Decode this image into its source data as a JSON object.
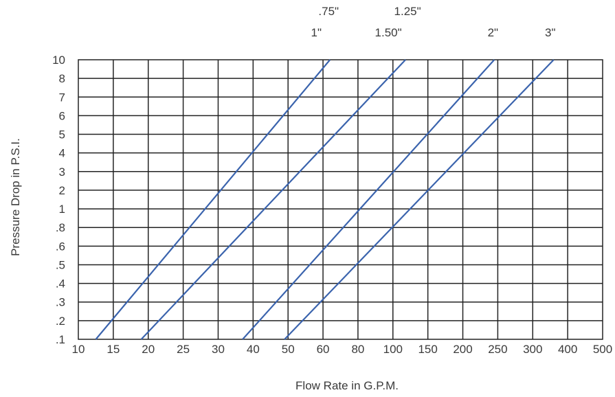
{
  "chart_data": {
    "type": "line",
    "title": "",
    "xlabel": "Flow Rate in G.P.M.",
    "ylabel": "Pressure Drop in P.S.I.",
    "x_tick_labels": [
      "10",
      "15",
      "20",
      "25",
      "30",
      "40",
      "50",
      "60",
      "80",
      "100",
      "150",
      "200",
      "250",
      "300",
      "400",
      "500"
    ],
    "y_tick_labels": [
      ".1",
      ".2",
      ".3",
      ".4",
      ".5",
      ".6",
      ".8",
      "1",
      "2",
      "3",
      "4",
      "5",
      "6",
      "7",
      "8",
      "10"
    ],
    "grid": true,
    "line_color": "#3a63ad",
    "series_labels": [
      {
        "top": ".75\"",
        "bottom": "1\""
      },
      {
        "top": "1.25\"",
        "bottom": "1.50\""
      },
      {
        "top": "",
        "bottom": "2\""
      },
      {
        "top": "",
        "bottom": "3\""
      }
    ],
    "series": [
      {
        "points": [
          {
            "x": 12.5,
            "y": 0.1
          },
          {
            "x": 64,
            "y": 10
          }
        ]
      },
      {
        "points": [
          {
            "x": 19,
            "y": 0.1
          },
          {
            "x": 118,
            "y": 10
          }
        ]
      },
      {
        "points": [
          {
            "x": 37,
            "y": 0.1
          },
          {
            "x": 245,
            "y": 10
          }
        ]
      },
      {
        "points": [
          {
            "x": 49,
            "y": 0.1
          },
          {
            "x": 360,
            "y": 10
          }
        ]
      }
    ]
  }
}
